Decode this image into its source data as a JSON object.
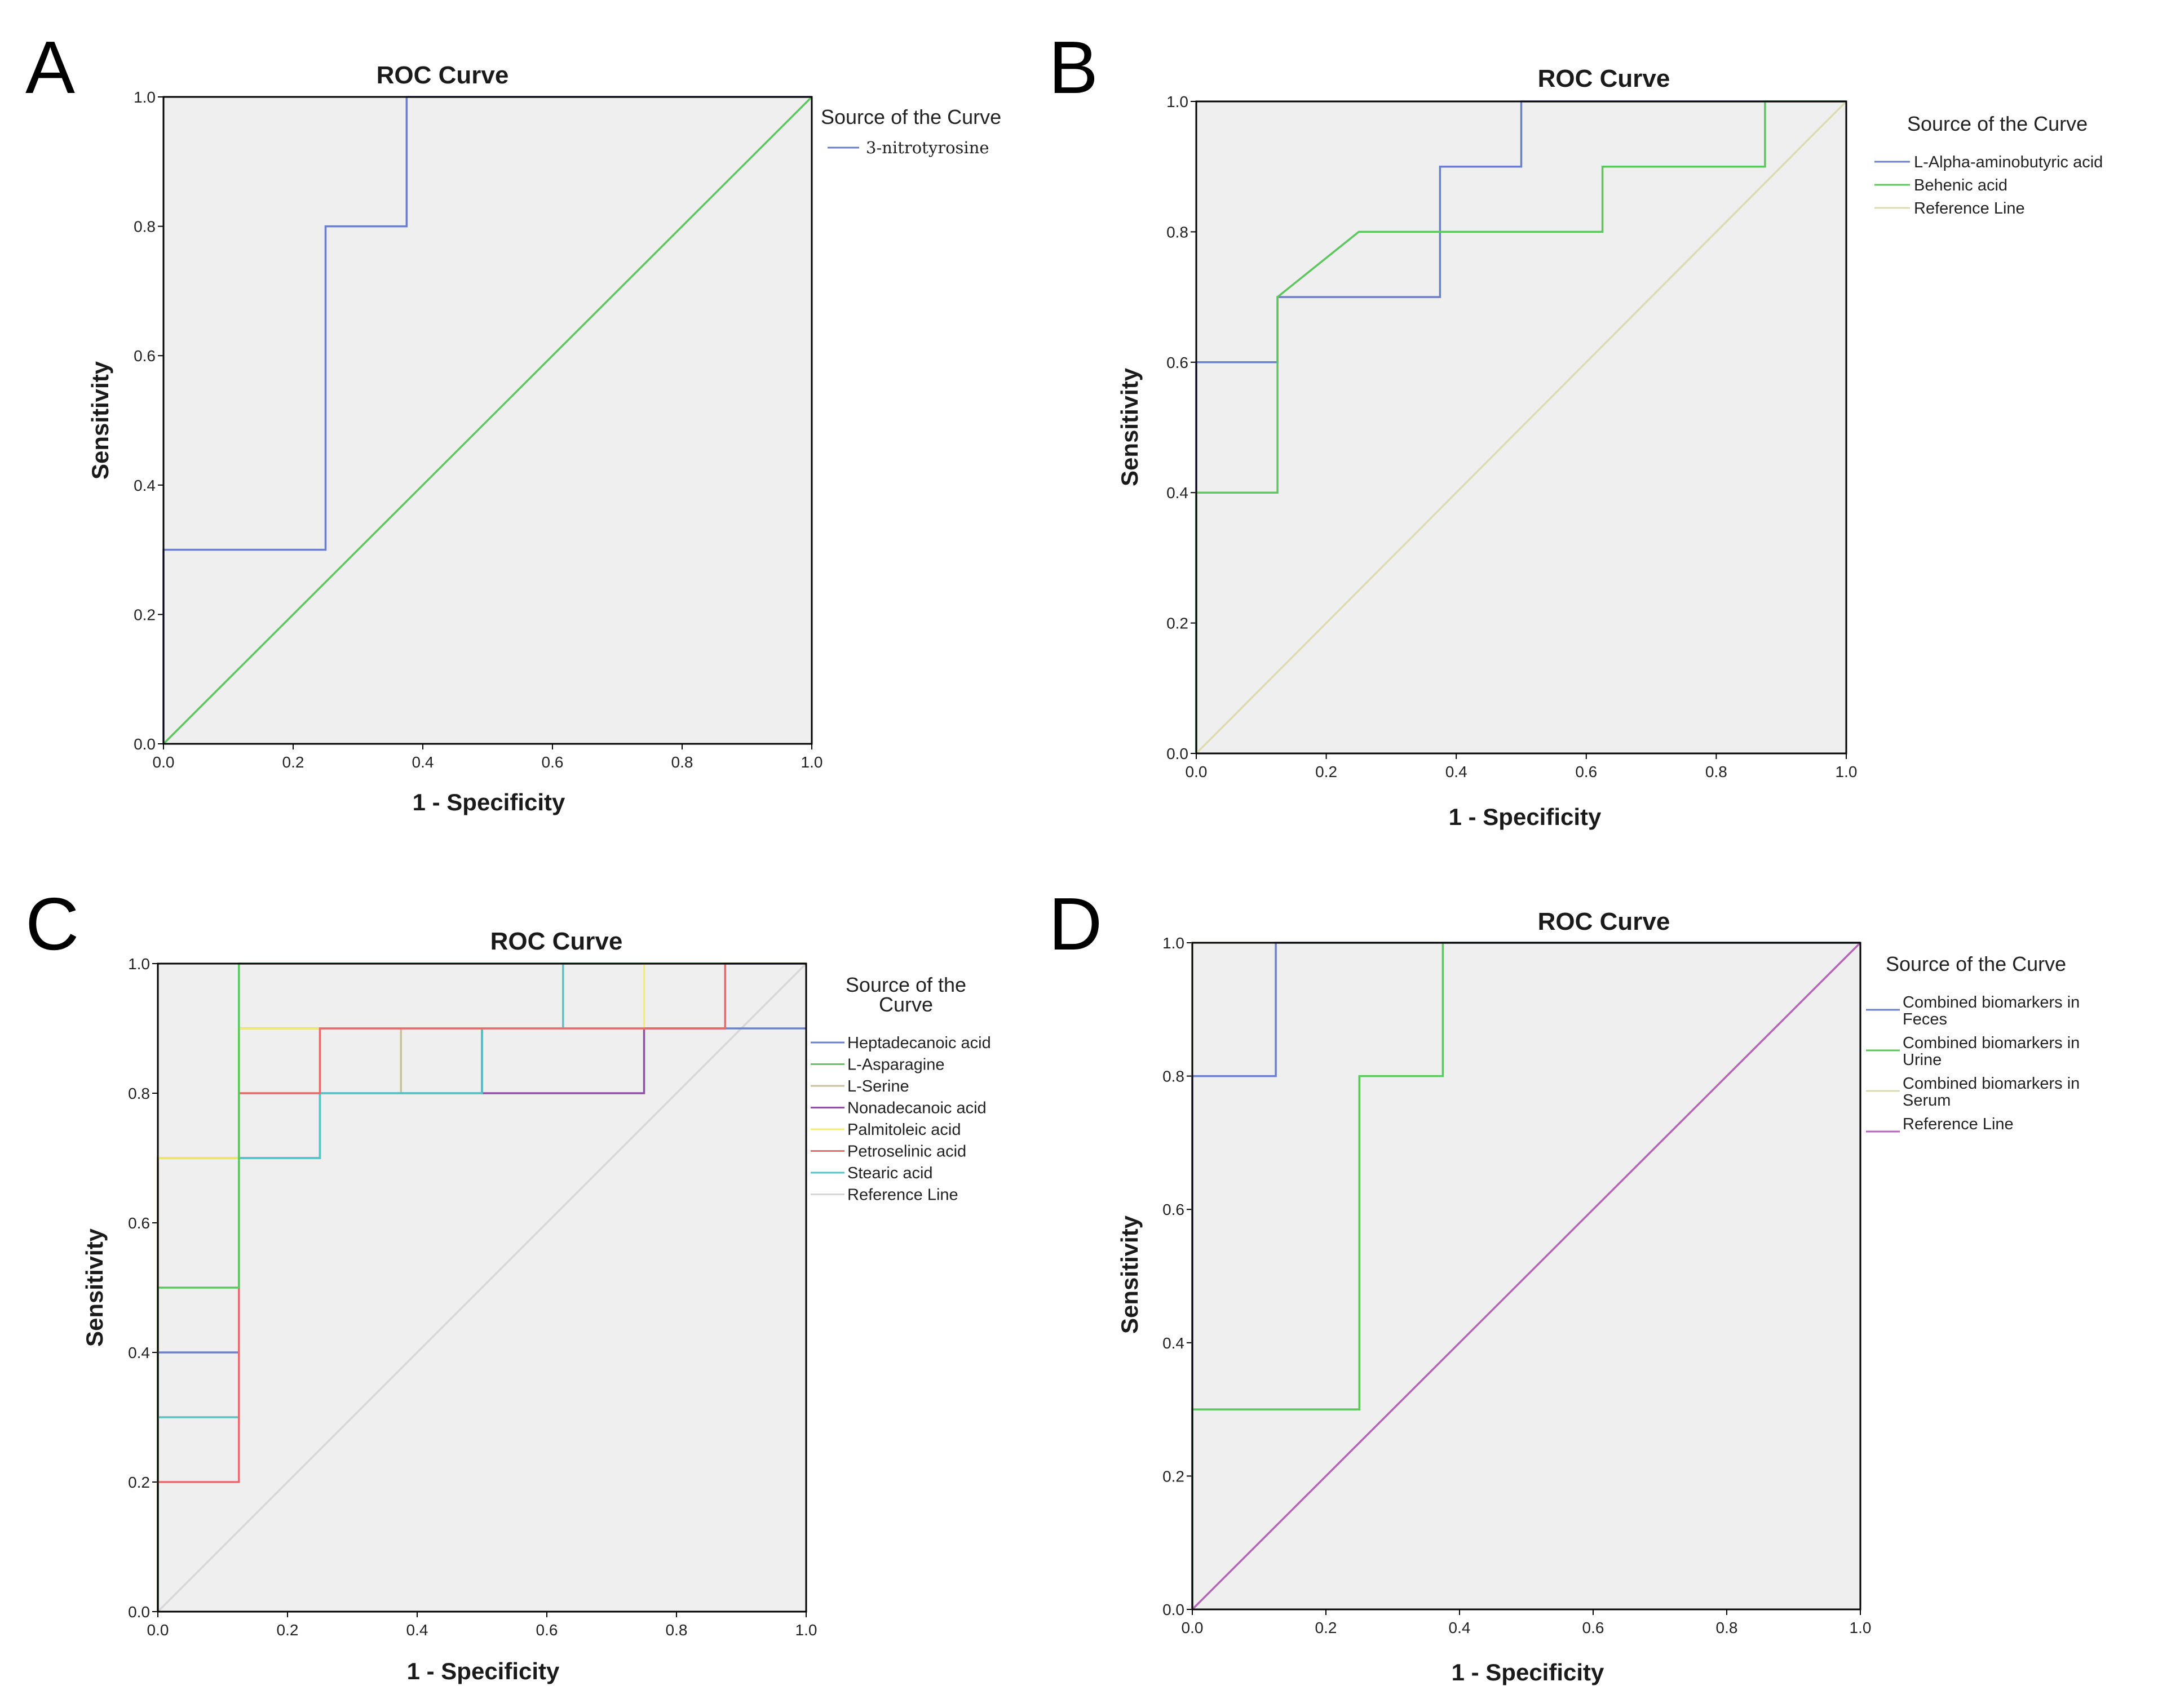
{
  "chart_data": [
    {
      "panel": "A",
      "type": "line",
      "title": "ROC Curve",
      "xlabel": "1 - Specificity",
      "ylabel": "Sensitivity",
      "xlim": [
        0,
        1
      ],
      "ylim": [
        0,
        1
      ],
      "ticks": [
        "0.0",
        "0.2",
        "0.4",
        "0.6",
        "0.8",
        "1.0"
      ],
      "legend_title": "Source of the Curve",
      "series": [
        {
          "name": "3-nitrotyrosine",
          "color": "#6a7fc9",
          "legend": true,
          "x": [
            0,
            0,
            0.25,
            0.25,
            0.375,
            0.375,
            1
          ],
          "y": [
            0,
            0.3,
            0.3,
            0.8,
            0.8,
            1,
            1
          ]
        },
        {
          "name": "",
          "color": "#5ec65e",
          "legend": false,
          "x": [
            0,
            1
          ],
          "y": [
            0,
            1
          ]
        }
      ]
    },
    {
      "panel": "B",
      "type": "line",
      "title": "ROC Curve",
      "xlabel": "1 - Specificity",
      "ylabel": "Sensitivity",
      "xlim": [
        0,
        1
      ],
      "ylim": [
        0,
        1
      ],
      "ticks": [
        "0.0",
        "0.2",
        "0.4",
        "0.6",
        "0.8",
        "1.0"
      ],
      "legend_title": "Source of the Curve",
      "series": [
        {
          "name": "L-Alpha-aminobutyric acid",
          "color": "#6a7fc9",
          "legend": true,
          "x": [
            0,
            0,
            0.125,
            0.125,
            0.375,
            0.375,
            0.5,
            0.5,
            1
          ],
          "y": [
            0,
            0.6,
            0.6,
            0.7,
            0.7,
            0.9,
            0.9,
            1,
            1
          ]
        },
        {
          "name": "Behenic acid",
          "color": "#5ec65e",
          "legend": true,
          "x": [
            0,
            0,
            0.125,
            0.125,
            0.25,
            0.625,
            0.625,
            0.875,
            0.875,
            1
          ],
          "y": [
            0,
            0.4,
            0.4,
            0.7,
            0.8,
            0.8,
            0.9,
            0.9,
            1,
            1
          ]
        },
        {
          "name": "Reference Line",
          "color": "#dcdcb4",
          "legend": true,
          "x": [
            0,
            1
          ],
          "y": [
            0,
            1
          ]
        }
      ]
    },
    {
      "panel": "C",
      "type": "line",
      "title": "ROC Curve",
      "xlabel": "1 - Specificity",
      "ylabel": "Sensitivity",
      "xlim": [
        0,
        1
      ],
      "ylim": [
        0,
        1
      ],
      "ticks": [
        "0.0",
        "0.2",
        "0.4",
        "0.6",
        "0.8",
        "1.0"
      ],
      "legend_title_lines": [
        "Source of the",
        "Curve"
      ],
      "series": [
        {
          "name": "Reference Line",
          "color": "#d6d6d6",
          "legend": true,
          "x": [
            0,
            1
          ],
          "y": [
            0,
            1
          ]
        },
        {
          "name": "L-Serine",
          "color": "#c8c29a",
          "legend": true,
          "x": [
            0,
            0,
            0.125,
            0.125,
            0.25,
            0.25,
            0.375,
            0.375,
            0.5,
            0.5,
            0.875,
            0.875,
            1
          ],
          "y": [
            0,
            0.7,
            0.7,
            0.8,
            0.8,
            0.9,
            0.9,
            0.8,
            0.8,
            0.9,
            0.9,
            1,
            1
          ]
        },
        {
          "name": "Heptadecanoic acid",
          "color": "#6a7fc9",
          "legend": true,
          "x": [
            0,
            0,
            0.125,
            0.125,
            0.25,
            0.25,
            0.5,
            0.5,
            0.875,
            0.875,
            1
          ],
          "y": [
            0,
            0.4,
            0.4,
            0.7,
            0.7,
            0.8,
            0.8,
            0.9,
            0.9,
            0.9,
            0.9
          ]
        },
        {
          "name": "Nonadecanoic acid",
          "color": "#8e4fa5",
          "legend": true,
          "x": [
            0,
            0,
            0.125,
            0.125,
            0.5,
            0.5,
            0.75,
            0.75,
            0.875,
            0.875,
            1
          ],
          "y": [
            0,
            0.7,
            0.7,
            0.9,
            0.9,
            0.8,
            0.8,
            0.9,
            0.9,
            1,
            1
          ]
        },
        {
          "name": "Stearic acid",
          "color": "#55c4c4",
          "legend": true,
          "x": [
            0,
            0,
            0.125,
            0.125,
            0.25,
            0.25,
            0.5,
            0.5,
            0.625,
            0.625,
            1
          ],
          "y": [
            0,
            0.3,
            0.3,
            0.7,
            0.7,
            0.8,
            0.8,
            0.9,
            0.9,
            1,
            1
          ]
        },
        {
          "name": "Palmitoleic acid",
          "color": "#f2ee6a",
          "legend": true,
          "x": [
            0,
            0,
            0.125,
            0.125,
            0.75,
            0.75,
            1
          ],
          "y": [
            0,
            0.7,
            0.7,
            0.9,
            0.9,
            1,
            1
          ]
        },
        {
          "name": "Petroselinic acid",
          "color": "#e86a6a",
          "legend": true,
          "x": [
            0,
            0,
            0.125,
            0.125,
            0.25,
            0.25,
            0.875,
            0.875,
            1
          ],
          "y": [
            0,
            0.2,
            0.2,
            0.8,
            0.8,
            0.9,
            0.9,
            1,
            1
          ]
        },
        {
          "name": "L-Asparagine",
          "color": "#5ec65e",
          "legend": true,
          "x": [
            0,
            0,
            0.125,
            0.125,
            1
          ],
          "y": [
            0,
            0.5,
            0.5,
            1,
            1
          ]
        }
      ],
      "legend_order": [
        "Heptadecanoic acid",
        "L-Asparagine",
        "L-Serine",
        "Nonadecanoic acid",
        "Palmitoleic acid",
        "Petroselinic acid",
        "Stearic acid",
        "Reference Line"
      ]
    },
    {
      "panel": "D",
      "type": "line",
      "title": "ROC Curve",
      "xlabel": "1 - Specificity",
      "ylabel": "Sensitivity",
      "xlim": [
        0,
        1
      ],
      "ylim": [
        0,
        1
      ],
      "ticks": [
        "0.0",
        "0.2",
        "0.4",
        "0.6",
        "0.8",
        "1.0"
      ],
      "legend_title": "Source of the Curve",
      "series": [
        {
          "name": "Reference Line",
          "color": "#b565b5",
          "legend": true,
          "x": [
            0,
            1
          ],
          "y": [
            0,
            1
          ]
        },
        {
          "name": "Combined biomarkers in Serum",
          "color": "#dcdcb4",
          "legend": true,
          "x": [
            0,
            0,
            1
          ],
          "y": [
            0,
            1,
            1
          ]
        },
        {
          "name": "Combined biomarkers in Urine",
          "color": "#5ec65e",
          "legend": true,
          "x": [
            0,
            0,
            0.25,
            0.25,
            0.375,
            0.375,
            1
          ],
          "y": [
            0,
            0.3,
            0.3,
            0.8,
            0.8,
            1,
            1
          ]
        },
        {
          "name": "Combined biomarkers in Feces",
          "color": "#6a7fc9",
          "legend": true,
          "x": [
            0,
            0,
            0.125,
            0.125,
            1
          ],
          "y": [
            0,
            0.8,
            0.8,
            1,
            1
          ]
        }
      ],
      "legend_order": [
        "Combined biomarkers in Feces",
        "Combined biomarkers in Urine",
        "Combined biomarkers in Serum",
        "Reference Line"
      ],
      "legend_lines": {
        "Combined biomarkers in Feces": [
          "Combined biomarkers in",
          "Feces"
        ],
        "Combined biomarkers in Urine": [
          "Combined biomarkers in",
          "Urine"
        ],
        "Combined biomarkers in Serum": [
          "Combined biomarkers in",
          "Serum"
        ],
        "Reference Line": [
          "Reference Line"
        ]
      }
    }
  ]
}
